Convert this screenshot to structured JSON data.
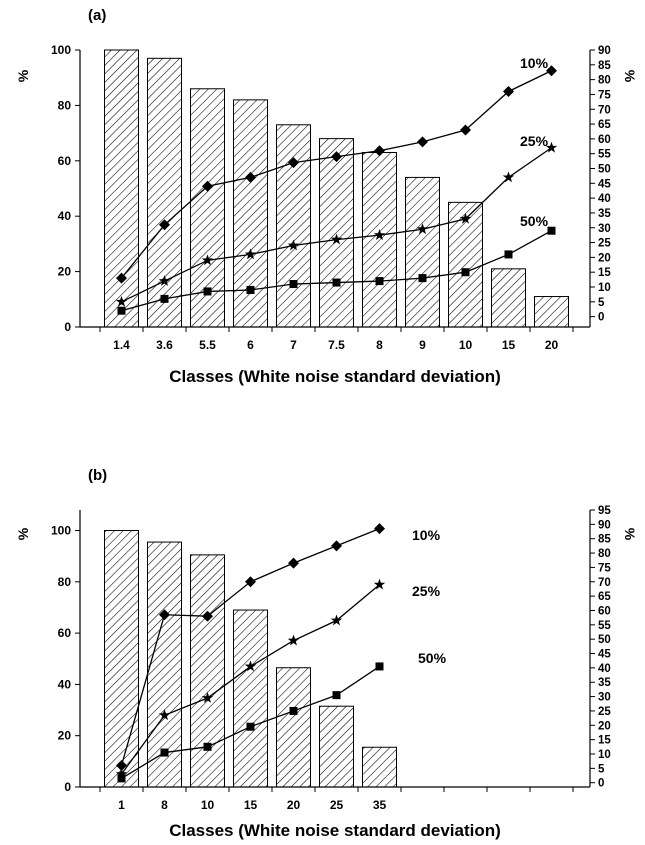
{
  "chart_data": [
    {
      "type": "bar",
      "panel_label": "(a)",
      "xlabel": "Classes (White noise standard deviation)",
      "ylabel_left": "%",
      "ylabel_right": "%",
      "categories": [
        "1.4",
        "3.6",
        "5.5",
        "6",
        "7",
        "7.5",
        "8",
        "9",
        "10",
        "15",
        "20"
      ],
      "left_axis": {
        "range": [
          0,
          100
        ],
        "ticks": [
          "0",
          "20",
          "40",
          "60",
          "80",
          "100"
        ]
      },
      "right_axis": {
        "range": [
          -3.5,
          90
        ],
        "ticks": [
          "0",
          "5",
          "10",
          "15",
          "20",
          "25",
          "30",
          "35",
          "40",
          "45",
          "50",
          "55",
          "60",
          "65",
          "70",
          "75",
          "80",
          "85",
          "90"
        ]
      },
      "bars": {
        "axis": "left",
        "values": [
          100,
          97,
          86,
          82,
          73,
          68,
          63,
          54,
          45,
          21,
          11
        ]
      },
      "series": [
        {
          "name": "10%",
          "axis": "right",
          "marker": "diamond",
          "values": [
            13,
            31,
            44,
            47,
            52,
            54,
            56,
            59,
            63,
            76,
            83
          ]
        },
        {
          "name": "25%",
          "axis": "right",
          "marker": "star",
          "values": [
            5,
            12,
            19,
            21,
            24,
            26,
            27.5,
            29.5,
            33,
            47,
            57
          ]
        },
        {
          "name": "50%",
          "axis": "right",
          "marker": "square",
          "values": [
            2,
            6,
            8.5,
            9,
            11,
            11.5,
            12,
            13,
            15,
            21,
            29
          ]
        }
      ]
    },
    {
      "type": "bar",
      "panel_label": "(b)",
      "xlabel": "Classes (White noise standard deviation)",
      "ylabel_left": "%",
      "ylabel_right": "%",
      "categories": [
        "1",
        "8",
        "10",
        "15",
        "20",
        "25",
        "35"
      ],
      "left_axis": {
        "range": [
          0,
          108
        ],
        "ticks": [
          "0",
          "20",
          "40",
          "60",
          "80",
          "100"
        ]
      },
      "right_axis": {
        "range": [
          -1.5,
          95
        ],
        "ticks": [
          "0",
          "5",
          "10",
          "15",
          "20",
          "25",
          "30",
          "35",
          "40",
          "45",
          "50",
          "55",
          "60",
          "65",
          "70",
          "75",
          "80",
          "85",
          "90",
          "95"
        ]
      },
      "bars": {
        "axis": "left",
        "values": [
          100,
          95.5,
          90.5,
          69,
          46.5,
          31.5,
          15.5
        ]
      },
      "series": [
        {
          "name": "10%",
          "axis": "right",
          "marker": "diamond",
          "values": [
            6,
            58.5,
            58,
            70,
            76.5,
            82.5,
            88.5
          ]
        },
        {
          "name": "25%",
          "axis": "right",
          "marker": "star",
          "values": [
            3,
            23.5,
            29.5,
            40.5,
            49.5,
            56.5,
            69
          ]
        },
        {
          "name": "50%",
          "axis": "right",
          "marker": "square",
          "values": [
            1.5,
            10.5,
            12.5,
            19.5,
            25,
            30.5,
            40.5
          ]
        }
      ]
    }
  ]
}
